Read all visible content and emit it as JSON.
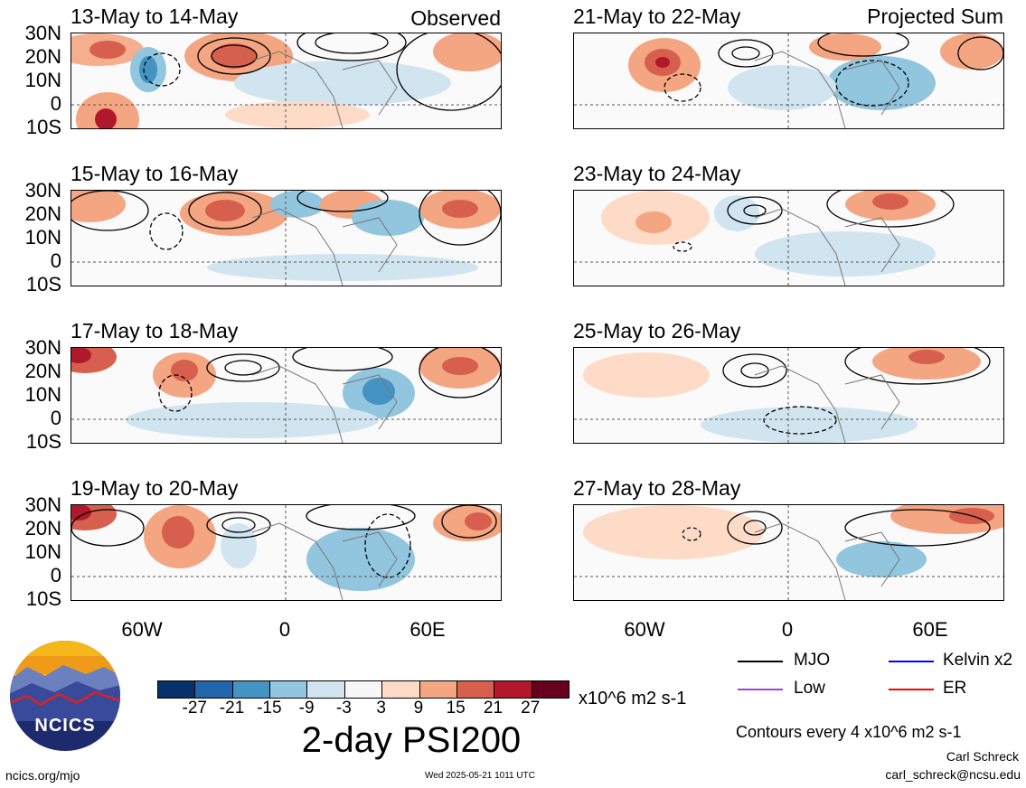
{
  "panels_left": [
    {
      "title": "13-May to 14-May",
      "tag": "Observed"
    },
    {
      "title": "15-May to 16-May",
      "tag": ""
    },
    {
      "title": "17-May to 18-May",
      "tag": ""
    },
    {
      "title": "19-May to 20-May",
      "tag": ""
    }
  ],
  "panels_right": [
    {
      "title": "21-May to 22-May",
      "tag": "Projected Sum"
    },
    {
      "title": "23-May to 24-May",
      "tag": ""
    },
    {
      "title": "25-May to 26-May",
      "tag": ""
    },
    {
      "title": "27-May to 28-May",
      "tag": ""
    }
  ],
  "lat_labels": [
    "30N",
    "20N",
    "10N",
    "0",
    "10S"
  ],
  "lon_labels": [
    "60W",
    "0",
    "60E"
  ],
  "colorbar": {
    "colors": [
      "#08306b",
      "#2166ac",
      "#4393c3",
      "#92c5de",
      "#d1e5f0",
      "#f7f7f7",
      "#fddbc7",
      "#f4a582",
      "#d6604d",
      "#b2182b",
      "#67001f"
    ],
    "labels": [
      "-27",
      "-21",
      "-15",
      "-9",
      "-3",
      "3",
      "9",
      "15",
      "21",
      "27"
    ],
    "units": "x10^6 m2 s-1",
    "title": "2-day PSI200"
  },
  "legend": {
    "items": [
      {
        "label": "MJO",
        "color": "#000000"
      },
      {
        "label": "Kelvin x2",
        "color": "#0000ff"
      },
      {
        "label": "Low",
        "color": "#a040e0"
      },
      {
        "label": "ER",
        "color": "#ff0000"
      }
    ],
    "contour_note": "Contours every 4 x10^6 m2 s-1"
  },
  "logo": {
    "text": "NCICS"
  },
  "footer": {
    "left": "ncics.org/mjo",
    "center": "Wed 2025-05-21 1011 UTC",
    "author": "Carl Schreck",
    "email": "carl_schreck@ncsu.edu"
  }
}
